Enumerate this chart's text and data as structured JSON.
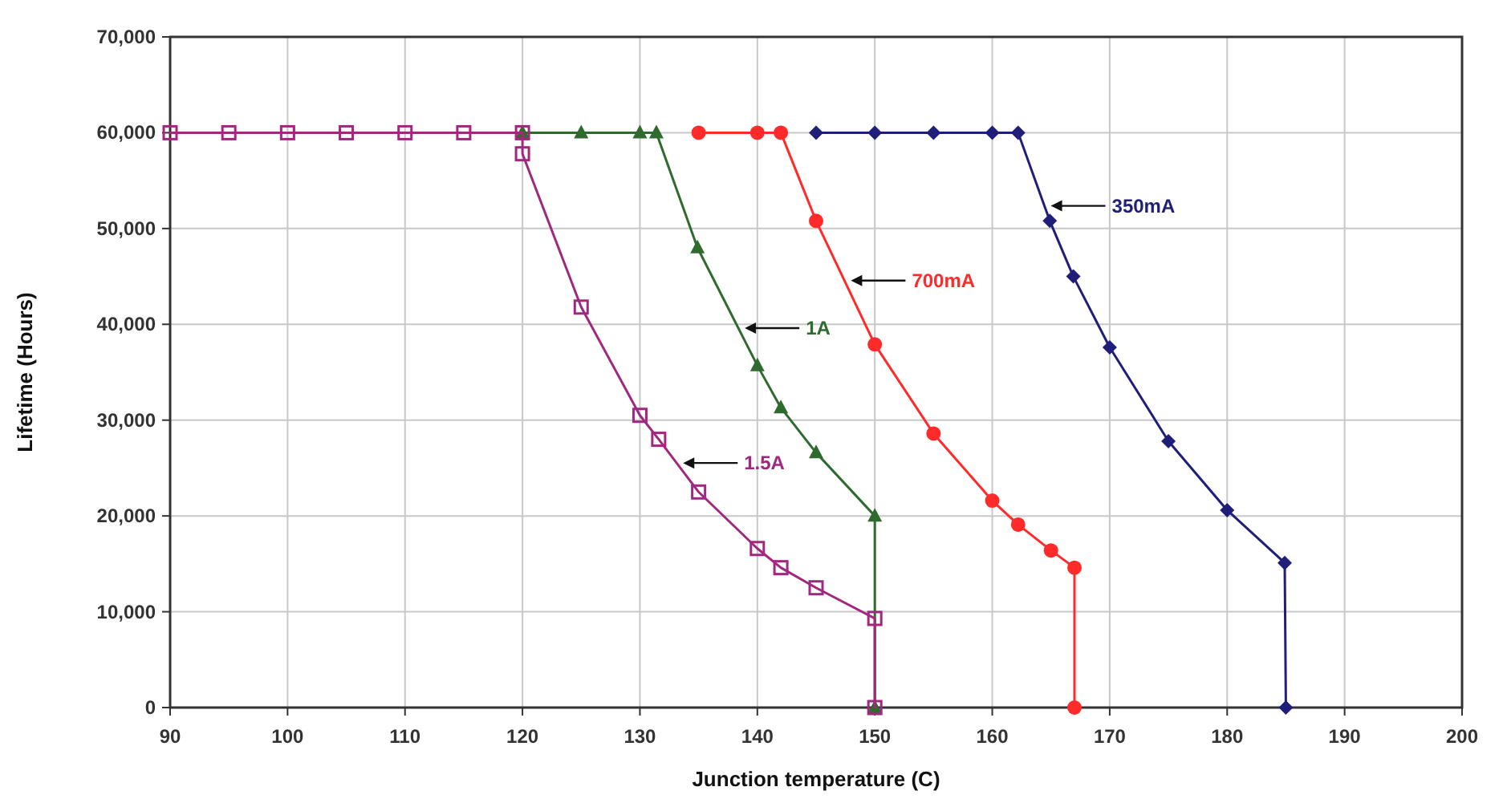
{
  "chart_data": {
    "type": "line",
    "xlabel": "Junction temperature (C)",
    "ylabel": "Lifetime (Hours)",
    "xlim": [
      90,
      200
    ],
    "xticks": [
      90,
      100,
      110,
      120,
      130,
      140,
      150,
      160,
      170,
      180,
      190,
      200
    ],
    "ylim": [
      0,
      70000
    ],
    "yticks": [
      {
        "value": 0,
        "label": "0"
      },
      {
        "value": 10000,
        "label": "10,000"
      },
      {
        "value": 20000,
        "label": "20,000"
      },
      {
        "value": 30000,
        "label": "30,000"
      },
      {
        "value": 40000,
        "label": "40,000"
      },
      {
        "value": 50000,
        "label": "50,000"
      },
      {
        "value": 60000,
        "label": "60,000"
      },
      {
        "value": 70000,
        "label": "70,000"
      }
    ],
    "grid": true,
    "legend": false,
    "line_style": "solid",
    "series": [
      {
        "name": "350mA",
        "color": "#1f1f7a",
        "marker": "diamond",
        "x": [
          145,
          150,
          155,
          160,
          162.2,
          164.9,
          166.9,
          170,
          175,
          180,
          184.9,
          185
        ],
        "values": [
          60000,
          60000,
          60000,
          60000,
          60000,
          50800,
          45000,
          37600,
          27800,
          20600,
          15100,
          0
        ]
      },
      {
        "name": "700mA",
        "color": "#ff2a2a",
        "marker": "circle",
        "x": [
          135,
          140,
          142,
          145,
          150,
          155,
          160,
          162.2,
          165,
          167,
          167
        ],
        "values": [
          60000,
          60000,
          60000,
          50800,
          37900,
          28600,
          21600,
          19100,
          16400,
          14600,
          0
        ]
      },
      {
        "name": "1A",
        "color": "#2f6a2f",
        "marker": "triangle",
        "x": [
          120,
          125,
          130,
          131.4,
          134.9,
          140,
          142,
          145,
          150,
          150
        ],
        "values": [
          60000,
          60000,
          60000,
          60000,
          48000,
          35700,
          31300,
          26600,
          20000,
          0
        ]
      },
      {
        "name": "1.5A",
        "color": "#a0287f",
        "marker": "square",
        "x": [
          90,
          95,
          100,
          105,
          110,
          115,
          120,
          120,
          125,
          130,
          131.6,
          135,
          140,
          142,
          145,
          150,
          150
        ],
        "values": [
          60000,
          60000,
          60000,
          60000,
          60000,
          60000,
          60000,
          57800,
          41800,
          30500,
          28000,
          22500,
          16600,
          14600,
          12500,
          9300,
          0
        ]
      }
    ]
  }
}
